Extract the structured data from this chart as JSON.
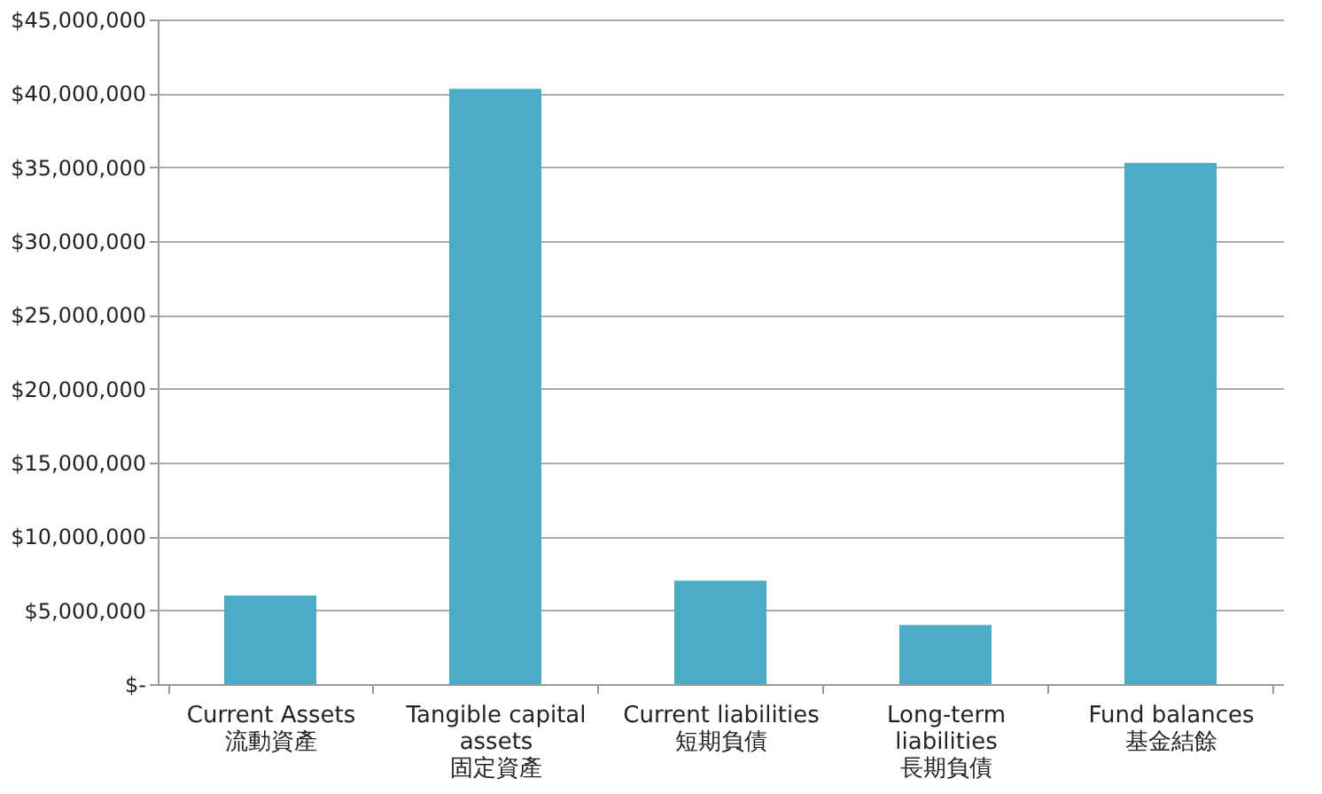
{
  "chart_data": {
    "type": "bar",
    "categories": [
      "Current Assets\n流動資產",
      "Tangible capital assets\n固定資產",
      "Current liabilities\n短期負債",
      "Long-term liabilities\n長期負債",
      "Fund balances\n基金結餘"
    ],
    "values": [
      6000000,
      40300000,
      7000000,
      4000000,
      35300000
    ],
    "color": "#4bacc6",
    "ylim": [
      0,
      45000000
    ],
    "yticks": [
      {
        "value": 0,
        "label": "$-"
      },
      {
        "value": 5000000,
        "label": "$5,000,000"
      },
      {
        "value": 10000000,
        "label": "$10,000,000"
      },
      {
        "value": 15000000,
        "label": "$15,000,000"
      },
      {
        "value": 20000000,
        "label": "$20,000,000"
      },
      {
        "value": 25000000,
        "label": "$25,000,000"
      },
      {
        "value": 30000000,
        "label": "$30,000,000"
      },
      {
        "value": 35000000,
        "label": "$35,000,000"
      },
      {
        "value": 40000000,
        "label": "$40,000,000"
      },
      {
        "value": 45000000,
        "label": "$45,000,000"
      }
    ],
    "grid": "y"
  }
}
